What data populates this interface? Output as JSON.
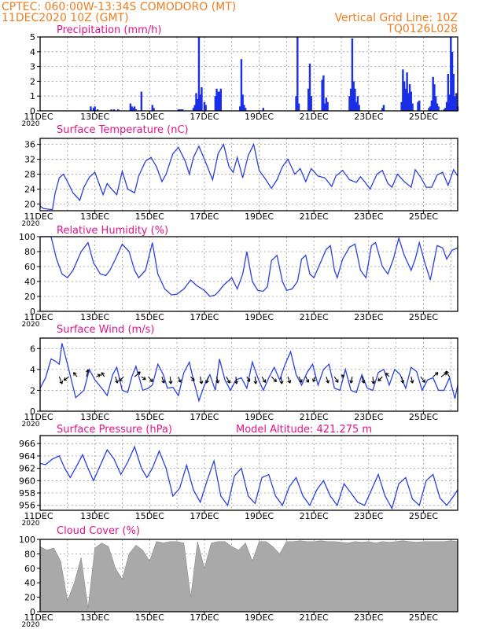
{
  "header": {
    "line1": "CPTEC:   060:00W-13:34S   COMODORO (MT)",
    "line2": "11DEC2020 10Z (GMT)",
    "grid_note": "Vertical Grid Line: 10Z",
    "code": "TQ0126L028"
  },
  "colors": {
    "line": "#2a40e0",
    "bar": "#1a2fe6",
    "cloud": "#a9a9a9",
    "title": "#e2148a",
    "header": "#f07d1e"
  },
  "x_axis": {
    "first_label": "11DEC",
    "year_stub": "2020",
    "labels": [
      "13DEC",
      "15DEC",
      "17DEC",
      "19DEC",
      "21DEC",
      "23DEC",
      "25DEC"
    ],
    "day_start": 0,
    "day_end": 15.25
  },
  "chart_data": [
    {
      "type": "bar",
      "title": "Precipitation (mm/h)",
      "ylim": [
        0,
        5
      ],
      "yticks": [
        0,
        1,
        2,
        3,
        4,
        5
      ],
      "x": [
        1.85,
        1.95,
        2.0,
        2.1,
        2.6,
        2.7,
        2.85,
        3.3,
        3.35,
        3.4,
        3.45,
        3.5,
        3.7,
        4.1,
        4.15,
        5.05,
        5.1,
        5.15,
        5.2,
        5.6,
        5.65,
        5.7,
        5.75,
        5.8,
        5.85,
        5.9,
        6.0,
        6.05,
        6.4,
        6.45,
        6.5,
        6.55,
        6.6,
        7.3,
        7.35,
        7.4,
        7.45,
        7.5,
        8.15,
        9.35,
        9.4,
        9.45,
        9.8,
        9.85,
        9.9,
        10.3,
        10.35,
        10.4,
        10.45,
        10.5,
        11.3,
        11.35,
        11.4,
        11.45,
        11.5,
        11.55,
        11.6,
        11.65,
        12.5,
        12.55,
        13.2,
        13.25,
        13.3,
        13.35,
        13.4,
        13.45,
        13.5,
        13.55,
        13.6,
        13.8,
        13.85,
        14.2,
        14.25,
        14.3,
        14.35,
        14.4,
        14.45,
        14.5,
        14.55,
        14.75,
        14.8,
        14.85,
        14.9,
        14.95,
        15.0,
        15.05,
        15.1,
        15.15,
        15.2,
        15.25
      ],
      "values": [
        0.3,
        0.2,
        0.3,
        0.1,
        0.1,
        0.1,
        0.1,
        0.5,
        0.3,
        0.2,
        0.3,
        0.1,
        1.3,
        0.4,
        0.2,
        0.1,
        0.1,
        0.1,
        0.1,
        0.2,
        0.4,
        1.2,
        0.8,
        5.0,
        1.1,
        1.6,
        0.6,
        0.4,
        1.0,
        1.5,
        1.3,
        1.3,
        1.5,
        0.3,
        3.5,
        1.1,
        0.4,
        0.2,
        0.2,
        1.0,
        5.0,
        0.5,
        1.5,
        3.2,
        1.0,
        2.1,
        2.4,
        0.5,
        0.9,
        0.6,
        1.0,
        1.5,
        4.9,
        2.0,
        1.5,
        0.6,
        1.0,
        0.4,
        0.2,
        0.4,
        0.6,
        2.8,
        2.0,
        1.5,
        2.6,
        1.2,
        1.8,
        1.3,
        0.5,
        0.6,
        0.7,
        0.2,
        0.3,
        0.7,
        2.3,
        1.8,
        1.0,
        0.5,
        0.3,
        0.1,
        0.2,
        0.6,
        2.5,
        1.1,
        5.0,
        4.0,
        2.5,
        1.0,
        1.2,
        0.3
      ]
    },
    {
      "type": "line",
      "title": "Surface Temperature (nC)",
      "ylim": [
        18.2,
        37.6
      ],
      "yticks": [
        20,
        24,
        28,
        32,
        36
      ],
      "x": [
        0,
        0.12,
        0.3,
        0.45,
        0.55,
        0.7,
        0.85,
        1.0,
        1.2,
        1.45,
        1.6,
        1.8,
        2.0,
        2.15,
        2.3,
        2.45,
        2.55,
        2.8,
        3.0,
        3.2,
        3.45,
        3.6,
        3.85,
        4.05,
        4.25,
        4.45,
        4.6,
        4.85,
        5.05,
        5.3,
        5.45,
        5.6,
        5.8,
        6.0,
        6.3,
        6.5,
        6.7,
        6.9,
        7.05,
        7.2,
        7.4,
        7.6,
        7.8,
        8.0,
        8.2,
        8.45,
        8.65,
        8.85,
        9.05,
        9.3,
        9.5,
        9.7,
        9.9,
        10.15,
        10.4,
        10.65,
        10.8,
        11.05,
        11.3,
        11.55,
        11.7,
        11.85,
        12.05,
        12.3,
        12.5,
        12.7,
        12.85,
        13.05,
        13.3,
        13.55,
        13.7,
        13.9,
        14.1,
        14.3,
        14.5,
        14.7,
        14.9,
        15.1,
        15.25
      ],
      "values": [
        19.5,
        18.8,
        18.6,
        18.5,
        23.0,
        27.0,
        28.0,
        26.0,
        23.0,
        21.0,
        24.5,
        27.2,
        28.5,
        25.5,
        22.5,
        25.5,
        24.5,
        22.5,
        28.8,
        24.0,
        23.0,
        27.5,
        31.5,
        32.5,
        30.0,
        26.0,
        28.0,
        33.5,
        35.2,
        31.5,
        28.0,
        32.5,
        35.5,
        32.0,
        26.5,
        33.5,
        36.0,
        30.0,
        28.5,
        32.5,
        27.0,
        33.0,
        36.0,
        29.0,
        27.0,
        24.2,
        26.5,
        30.0,
        32.0,
        28.0,
        29.5,
        26.0,
        29.5,
        27.5,
        27.0,
        24.7,
        27.5,
        29.0,
        26.5,
        25.8,
        27.3,
        26.0,
        24.0,
        28.0,
        29.0,
        25.5,
        24.5,
        28.0,
        26.0,
        24.5,
        29.2,
        27.2,
        24.5,
        24.5,
        27.8,
        28.5,
        25.0,
        29.2,
        27.5
      ]
    },
    {
      "type": "line",
      "title": "Relative Humidity (%)",
      "ylim": [
        0,
        100
      ],
      "yticks": [
        0,
        20,
        40,
        60,
        80,
        100
      ],
      "x": [
        0,
        0.4,
        0.6,
        0.8,
        1.0,
        1.2,
        1.5,
        1.75,
        1.95,
        2.2,
        2.4,
        2.55,
        2.75,
        3.0,
        3.25,
        3.45,
        3.6,
        3.85,
        4.1,
        4.3,
        4.55,
        4.8,
        5.0,
        5.25,
        5.5,
        5.7,
        6.0,
        6.2,
        6.4,
        6.55,
        6.7,
        6.85,
        7.0,
        7.2,
        7.4,
        7.55,
        7.75,
        7.95,
        8.15,
        8.3,
        8.45,
        8.65,
        8.85,
        9.0,
        9.2,
        9.4,
        9.55,
        9.7,
        9.85,
        10.0,
        10.2,
        10.45,
        10.6,
        10.75,
        10.85,
        11.05,
        11.3,
        11.5,
        11.7,
        11.9,
        12.1,
        12.25,
        12.5,
        12.7,
        12.9,
        13.1,
        13.3,
        13.55,
        13.7,
        13.85,
        14.05,
        14.25,
        14.5,
        14.7,
        14.85,
        15.05,
        15.25
      ],
      "values": [
        100,
        100,
        70,
        50,
        45,
        55,
        80,
        92,
        65,
        50,
        48,
        55,
        70,
        90,
        80,
        55,
        45,
        55,
        92,
        50,
        30,
        22,
        23,
        30,
        42,
        35,
        28,
        20,
        22,
        28,
        35,
        40,
        45,
        30,
        50,
        80,
        40,
        28,
        27,
        33,
        68,
        75,
        40,
        28,
        30,
        40,
        70,
        75,
        50,
        45,
        62,
        83,
        88,
        55,
        45,
        70,
        86,
        90,
        55,
        45,
        88,
        92,
        60,
        50,
        70,
        98,
        75,
        55,
        70,
        92,
        65,
        42,
        88,
        85,
        70,
        82,
        85
      ]
    },
    {
      "type": "line",
      "title": "Surface Wind (m/s)",
      "ylim": [
        0,
        7
      ],
      "yticks": [
        0,
        2,
        4,
        6
      ],
      "x": [
        0,
        0.2,
        0.4,
        0.55,
        0.7,
        0.8,
        1.0,
        1.3,
        1.6,
        1.8,
        2.0,
        2.25,
        2.45,
        2.65,
        2.8,
        3.0,
        3.2,
        3.35,
        3.5,
        3.75,
        3.95,
        4.1,
        4.3,
        4.5,
        4.65,
        4.85,
        5.05,
        5.25,
        5.45,
        5.6,
        5.8,
        6.0,
        6.2,
        6.4,
        6.55,
        6.75,
        6.95,
        7.15,
        7.35,
        7.55,
        7.75,
        7.95,
        8.15,
        8.35,
        8.55,
        8.75,
        8.95,
        9.15,
        9.35,
        9.55,
        9.75,
        9.95,
        10.15,
        10.35,
        10.55,
        10.75,
        10.95,
        11.15,
        11.35,
        11.55,
        11.75,
        11.95,
        12.15,
        12.35,
        12.55,
        12.75,
        12.95,
        13.15,
        13.35,
        13.55,
        13.75,
        13.95,
        14.15,
        14.35,
        14.55,
        14.75,
        14.95,
        15.15,
        15.25
      ],
      "values": [
        2.2,
        3.2,
        5.0,
        4.8,
        4.5,
        6.5,
        4.5,
        1.3,
        2.0,
        4.0,
        3.0,
        2.2,
        1.5,
        3.5,
        4.2,
        2.0,
        1.8,
        3.3,
        4.3,
        2.0,
        2.2,
        2.5,
        4.5,
        3.5,
        2.2,
        2.3,
        1.5,
        3.7,
        4.7,
        3.0,
        1.0,
        2.5,
        3.5,
        2.0,
        5.0,
        3.0,
        2.0,
        3.0,
        3.2,
        2.2,
        4.7,
        3.2,
        2.0,
        3.2,
        4.2,
        3.0,
        4.5,
        5.7,
        3.5,
        2.5,
        3.7,
        4.5,
        2.5,
        4.0,
        4.5,
        2.2,
        2.0,
        4.0,
        2.0,
        1.8,
        3.5,
        2.2,
        2.0,
        3.7,
        4.0,
        2.5,
        4.0,
        3.5,
        2.2,
        4.2,
        3.8,
        2.0,
        3.0,
        3.2,
        2.0,
        2.0,
        3.2,
        1.2,
        2.5
      ]
    },
    {
      "type": "line",
      "title": "Surface Pressure (hPa)",
      "annotation": "Model Altitude: 421.275  m",
      "ylim": [
        955.2,
        967.3
      ],
      "yticks": [
        956,
        958,
        960,
        962,
        964,
        966
      ],
      "x": [
        0,
        0.2,
        0.45,
        0.7,
        0.9,
        1.1,
        1.35,
        1.55,
        1.75,
        1.95,
        2.2,
        2.45,
        2.7,
        2.95,
        3.2,
        3.45,
        3.7,
        3.9,
        4.1,
        4.35,
        4.6,
        4.85,
        5.1,
        5.35,
        5.6,
        5.85,
        6.1,
        6.35,
        6.6,
        6.85,
        7.1,
        7.35,
        7.6,
        7.85,
        8.1,
        8.35,
        8.6,
        8.85,
        9.1,
        9.35,
        9.6,
        9.85,
        10.1,
        10.35,
        10.6,
        10.85,
        11.1,
        11.35,
        11.6,
        11.85,
        12.1,
        12.35,
        12.6,
        12.85,
        13.1,
        13.35,
        13.6,
        13.85,
        14.1,
        14.35,
        14.6,
        14.85,
        15.1,
        15.25
      ],
      "values": [
        962.8,
        962.6,
        963.5,
        964.0,
        962.0,
        960.5,
        962.5,
        964.2,
        962.0,
        960.0,
        962.5,
        965.0,
        963.5,
        961.0,
        963.0,
        965.5,
        962.0,
        960.5,
        962.0,
        964.8,
        962.0,
        957.5,
        958.8,
        962.5,
        958.5,
        956.5,
        960.0,
        963.2,
        957.5,
        956.0,
        960.8,
        962.0,
        957.5,
        956.3,
        960.5,
        961.0,
        957.5,
        956.0,
        959.0,
        960.5,
        957.5,
        956.0,
        958.5,
        960.0,
        957.5,
        956.0,
        959.5,
        958.0,
        956.5,
        956.0,
        958.5,
        961.0,
        957.5,
        955.5,
        959.5,
        960.5,
        957.0,
        956.0,
        960.0,
        961.0,
        957.2,
        956.0,
        957.5,
        958.5
      ]
    },
    {
      "type": "area",
      "title": "Cloud Cover (%)",
      "ylim": [
        0,
        100
      ],
      "yticks": [
        0,
        20,
        40,
        60,
        80,
        100
      ],
      "x": [
        0,
        0.25,
        0.5,
        0.75,
        1.0,
        1.25,
        1.5,
        1.75,
        2.0,
        2.25,
        2.5,
        2.75,
        3.0,
        3.25,
        3.5,
        3.75,
        4.0,
        4.25,
        4.5,
        4.75,
        5.0,
        5.25,
        5.5,
        5.75,
        6.0,
        6.25,
        6.5,
        6.75,
        7.0,
        7.25,
        7.5,
        7.75,
        8.0,
        8.25,
        8.5,
        8.75,
        9.0,
        9.25,
        9.5,
        9.75,
        10.0,
        10.25,
        10.5,
        10.75,
        11.0,
        11.25,
        11.5,
        11.75,
        12.0,
        12.25,
        12.5,
        12.75,
        13.0,
        13.25,
        13.5,
        13.75,
        14.0,
        14.25,
        14.5,
        14.75,
        15.0,
        15.25
      ],
      "values": [
        90,
        85,
        88,
        70,
        15,
        40,
        75,
        5,
        88,
        95,
        90,
        60,
        45,
        80,
        92,
        85,
        70,
        97,
        95,
        97,
        97,
        95,
        20,
        97,
        60,
        95,
        97,
        97,
        90,
        85,
        95,
        70,
        97,
        97,
        90,
        80,
        97,
        97,
        98,
        97,
        97,
        98,
        97,
        97,
        96,
        95,
        97,
        96,
        97,
        95,
        97,
        96,
        97,
        98,
        97,
        96,
        97,
        97,
        97,
        97,
        98,
        97
      ]
    }
  ],
  "wind_vectors": {
    "x": [
      0.7,
      1.05,
      1.35,
      1.7,
      2.05,
      2.35,
      2.75,
      3.05,
      3.45,
      3.7,
      3.95,
      4.45,
      4.75,
      5.05,
      5.5,
      5.85,
      6.15,
      6.45,
      6.8,
      7.15,
      7.55,
      7.85,
      8.1,
      8.45,
      8.8,
      9.05,
      9.45,
      9.7,
      10.05,
      10.45,
      10.75,
      11.0,
      11.4,
      11.75,
      12.15,
      12.5,
      12.75,
      13.2,
      13.55,
      13.9,
      14.35,
      14.65,
      14.95
    ],
    "u": [
      0.4,
      -0.7,
      -0.5,
      0.2,
      0.6,
      -0.4,
      0.3,
      -0.6,
      0.8,
      0.6,
      0.6,
      0.3,
      0.1,
      0.3,
      0.5,
      0.2,
      -0.3,
      0.2,
      0.5,
      0.1,
      0.4,
      0.1,
      0.5,
      0.7,
      0.1,
      0.3,
      0.4,
      0.4,
      -0.3,
      0.3,
      0.5,
      0.4,
      -0.2,
      0.3,
      0.1,
      -0.6,
      -0.5,
      0.2,
      0.2,
      0.6,
      0.7,
      0.8,
      -0.5
    ],
    "v": [
      -1.0,
      -0.5,
      0.6,
      1.0,
      0.3,
      0.6,
      -0.9,
      -0.6,
      0.7,
      -0.4,
      -0.7,
      -0.9,
      -1.0,
      -0.8,
      -0.6,
      -1.0,
      -0.9,
      -0.9,
      -0.9,
      -1.0,
      -0.7,
      -1.0,
      -0.8,
      -0.7,
      -1.0,
      -0.9,
      -0.8,
      -0.8,
      -0.7,
      -0.9,
      -0.8,
      0.2,
      -0.9,
      -0.9,
      -1.0,
      -0.6,
      0.5,
      -0.9,
      -0.9,
      -0.8,
      0.6,
      0.6,
      0.8
    ]
  }
}
